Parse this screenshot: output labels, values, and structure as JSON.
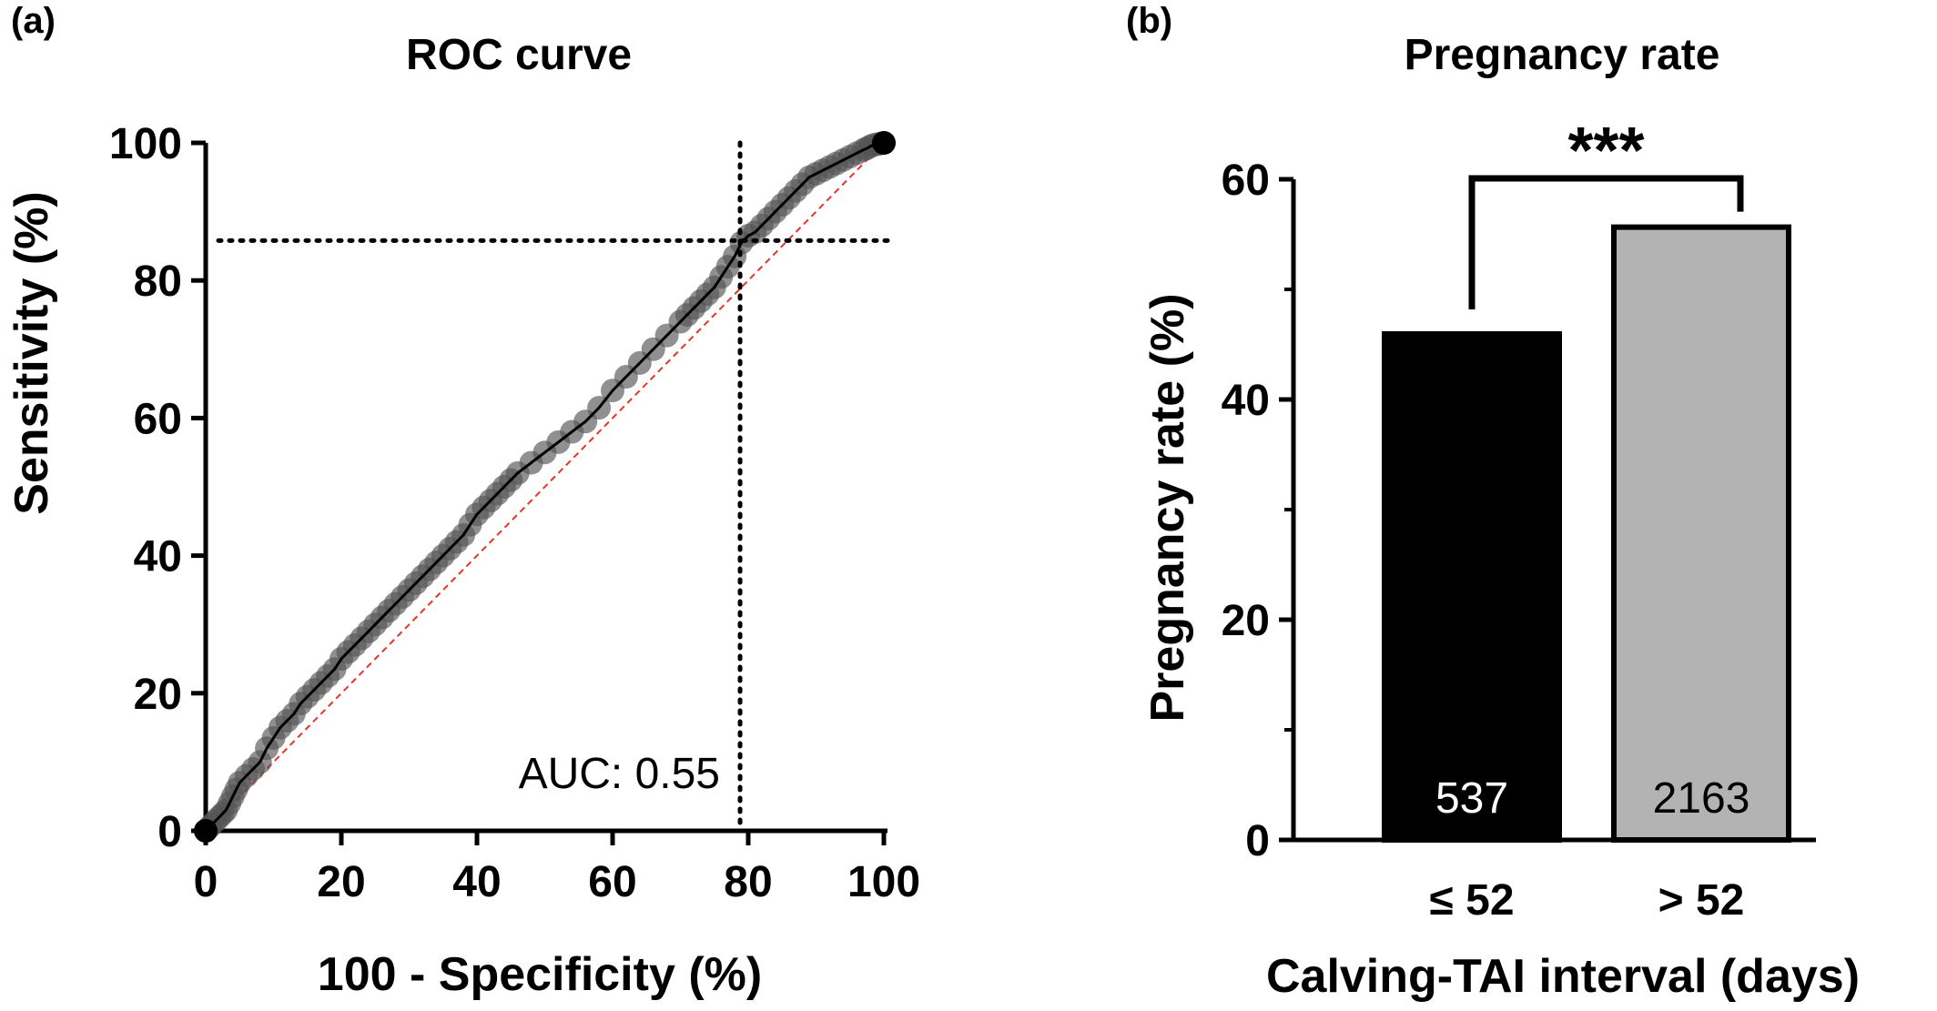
{
  "chart_data": [
    {
      "id": "a",
      "panel_label": "(a)",
      "type": "line",
      "title": "ROC curve",
      "xlabel": "100 - Specificity (%)",
      "ylabel": "Sensitivity (%)",
      "xlim": [
        0,
        100
      ],
      "ylim": [
        0,
        100
      ],
      "xticks": [
        0,
        20,
        40,
        60,
        80,
        100
      ],
      "yticks": [
        0,
        20,
        40,
        60,
        80,
        100
      ],
      "annotation": "AUC: 0.55",
      "cutoff": {
        "x": 78.8,
        "y": 85.8
      },
      "reference_line": {
        "from": [
          0,
          0
        ],
        "to": [
          100,
          100
        ],
        "color": "#e8322a"
      },
      "marker_color": "#555555",
      "series": [
        {
          "x": [
            0,
            0.5,
            1,
            1.5,
            2,
            2.5,
            3,
            3.5,
            4,
            4.5,
            5,
            6,
            7,
            8,
            9,
            10,
            11,
            12,
            13,
            14,
            15,
            16,
            17,
            18,
            19,
            20,
            21,
            22,
            23,
            24,
            25,
            26,
            27,
            28,
            29,
            30,
            31,
            32,
            33,
            34,
            35,
            36,
            37,
            38,
            39,
            40,
            41,
            42,
            43,
            44,
            45,
            46,
            48,
            50,
            52,
            54,
            56,
            58,
            60,
            62,
            64,
            66,
            68,
            70,
            71,
            72,
            73,
            74,
            75,
            76,
            77,
            78,
            79,
            80,
            81,
            82,
            83,
            84,
            85,
            86,
            87,
            88,
            89,
            90,
            91,
            92,
            93,
            94,
            95,
            96,
            97,
            97.5,
            98,
            98.5,
            99,
            99.5,
            100
          ],
          "y": [
            0,
            0.5,
            1,
            1.5,
            2,
            2.5,
            3,
            4,
            5,
            6,
            7,
            8,
            9,
            10,
            12,
            13.5,
            15,
            16,
            17,
            18.5,
            19.5,
            20.5,
            21.5,
            22.5,
            23.5,
            25,
            26,
            27,
            28,
            29,
            30,
            31,
            32,
            33,
            34,
            35,
            36,
            37,
            38,
            39,
            40,
            41,
            42,
            43,
            44.5,
            46,
            47,
            48,
            49,
            50,
            51,
            52,
            53.5,
            55,
            56.5,
            58,
            59.5,
            61.5,
            64,
            66,
            68,
            70,
            72,
            74,
            75,
            76,
            77,
            78,
            79,
            80.5,
            82,
            83.5,
            85.5,
            86.5,
            87,
            88,
            89,
            90,
            91,
            92,
            93,
            94,
            95,
            95.5,
            96,
            96.5,
            97,
            97.5,
            98,
            98.5,
            99,
            99.2,
            99.5,
            99.7,
            99.8,
            99.9,
            100
          ]
        }
      ]
    },
    {
      "id": "b",
      "panel_label": "(b)",
      "type": "bar",
      "title": "Pregnancy rate",
      "xlabel": "Calving-TAI interval (days)",
      "ylabel": "Pregnancy rate (%)",
      "ylim": [
        0,
        60
      ],
      "yticks": [
        0,
        20,
        40,
        60
      ],
      "categories": [
        "≤ 52",
        "> 52"
      ],
      "values": [
        46.2,
        55.9
      ],
      "bar_colors": [
        "#000000",
        "#b3b3b3"
      ],
      "bar_labels": [
        "537",
        "2163"
      ],
      "bar_label_colors": [
        "#ffffff",
        "#000000"
      ],
      "significance": "***"
    }
  ]
}
